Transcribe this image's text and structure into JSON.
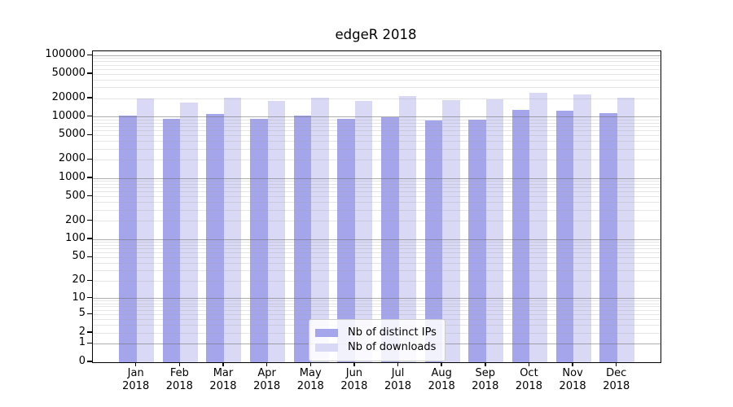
{
  "title": "edgeR 2018",
  "legend": {
    "items": [
      {
        "label": "Nb of distinct IPs",
        "color": "#a5a5ec"
      },
      {
        "label": "Nb of downloads",
        "color": "#d9d9f6"
      }
    ]
  },
  "colors": {
    "background": "#ffffff",
    "axis": "#000000",
    "major_grid": "#b0b0b0",
    "minor_grid": "#e3e3e3",
    "series_dark": "#a5a5ec",
    "series_light": "#d9d9f6"
  },
  "chart_data": {
    "type": "bar",
    "title": "edgeR 2018",
    "xlabel": "",
    "ylabel": "",
    "scale": "log1p",
    "grid": true,
    "legend_position": "lower-center-inside",
    "months": [
      "Jan",
      "Feb",
      "Mar",
      "Apr",
      "May",
      "Jun",
      "Jul",
      "Aug",
      "Sep",
      "Oct",
      "Nov",
      "Dec"
    ],
    "year": "2018",
    "categories": [
      "Jan 2018",
      "Feb 2018",
      "Mar 2018",
      "Apr 2018",
      "May 2018",
      "Jun 2018",
      "Jul 2018",
      "Aug 2018",
      "Sep 2018",
      "Oct 2018",
      "Nov 2018",
      "Dec 2018"
    ],
    "series": [
      {
        "name": "Nb of distinct IPs",
        "color": "#a5a5ec",
        "values": [
          10400,
          9200,
          11300,
          9400,
          10400,
          9400,
          10000,
          8700,
          9000,
          12900,
          12500,
          11600
        ]
      },
      {
        "name": "Nb of downloads",
        "color": "#d9d9f6",
        "values": [
          19800,
          17000,
          20400,
          18400,
          20800,
          18400,
          21700,
          18800,
          19200,
          25000,
          23300,
          20400
        ]
      }
    ],
    "yticks": [
      0,
      1,
      2,
      5,
      10,
      20,
      50,
      100,
      200,
      500,
      1000,
      2000,
      5000,
      10000,
      20000,
      50000,
      100000
    ],
    "major_grid_values": [
      1,
      10,
      100,
      1000,
      10000,
      100000
    ],
    "ylim": [
      0,
      118000
    ]
  }
}
